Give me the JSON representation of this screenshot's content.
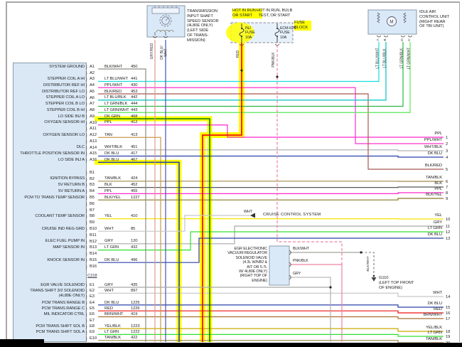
{
  "highlight_color": "#ffff00",
  "colors": {
    "BLK/WHT": "#8c8c84",
    "GRY/RED": "#e09a8c",
    "DK BLU/WHT": "#4054b0",
    "LT BLU/WHT": "#18dede",
    "PPL/WHT": "#ff30cc",
    "BLK/RED": "#a85850",
    "LT BLU/BLK": "#00c4c4",
    "LT GRN/BLK": "#28b848",
    "LT GRN/WHT": "#58e858",
    "DK GRN": "#087808",
    "PPL": "#ff28cc",
    "TAN": "#c89a50",
    "WHT/BLK": "#b4b4b4",
    "DK BLU": "#2840a8",
    "TAN/BLK": "#a08848",
    "BLK": "#585858",
    "BLK/YEL": "#887820",
    "YEL": "#f5e400",
    "WHT": "#c6c6c6",
    "GRY": "#a8a8a8",
    "LT GRN": "#30e030",
    "RED": "#f01010",
    "PNK/BLK": "#f080a0",
    "BRN/WHT": "#a87030",
    "YEL/BLK": "#c8a800"
  },
  "pcm_panel": {
    "connector_label": "C218",
    "groups": [
      {
        "name": "A",
        "rows": [
          {
            "pin": "A1",
            "label": "SYSTEM GROUND",
            "wire": "BLK/WHT",
            "circuit": "450"
          },
          {
            "pin": "A2"
          },
          {
            "pin": "A3",
            "label": "STEPPER COIL A HI",
            "wire": "LT BLU/WHT",
            "circuit": "441"
          },
          {
            "pin": "A4",
            "label": "DISTRIBUTOR REF HI",
            "wire": "PPL/WHT",
            "circuit": "430"
          },
          {
            "pin": "A5",
            "label": "DISTRIBUTOR REF LO",
            "wire": "BLK/RED",
            "circuit": "453"
          },
          {
            "pin": "A6",
            "label": "STEPPER COIL A LO",
            "wire": "LT BLU/BLK",
            "circuit": "442"
          },
          {
            "pin": "A7",
            "label": "STEPPER COIL B LO",
            "wire": "LT GRN/BLK",
            "circuit": "444"
          },
          {
            "pin": "A8",
            "label": "STEPPER COIL B HI",
            "wire": "LT GRN/WHT",
            "circuit": "443"
          },
          {
            "pin": "A9",
            "label": "LO SIDE INJ B",
            "wire": "DK GRN",
            "circuit": "468",
            "highlight": true
          },
          {
            "pin": "A10",
            "label": "OXYGEN SENSOR HI",
            "wire": "PPL",
            "circuit": "412"
          },
          {
            "pin": "A11"
          },
          {
            "pin": "A12",
            "label": "OXYGEN SENSOR LO",
            "wire": "TAN",
            "circuit": "413"
          },
          {
            "pin": "A13"
          },
          {
            "pin": "A14",
            "label": "DLC",
            "wire": "WHT/BLK",
            "circuit": "451"
          },
          {
            "pin": "A15",
            "label": "THROTTLE POSITION SENSOR IN",
            "wire": "DK BLU",
            "circuit": "417"
          },
          {
            "pin": "A16",
            "label": "LO SIDE INJ A",
            "wire": "DK BLU",
            "circuit": "467",
            "highlight": true
          }
        ]
      },
      {
        "name": "B",
        "rows": [
          {
            "pin": "B1"
          },
          {
            "pin": "B2",
            "label": "IGNITION BYPASS",
            "wire": "TAN/BLK",
            "circuit": "424"
          },
          {
            "pin": "B3",
            "label": "5V RETURN B",
            "wire": "BLK",
            "circuit": "452"
          },
          {
            "pin": "B4",
            "label": "5V RETURN A",
            "wire": "PPL",
            "circuit": "455"
          },
          {
            "pin": "B5",
            "label": "PCM TO TRANS TEMP SENSOR",
            "wire": "BLK/YEL",
            "circuit": "1227"
          },
          {
            "pin": "B6"
          },
          {
            "pin": "B7"
          },
          {
            "pin": "B8",
            "label": "COOLANT TEMP SENSOR",
            "wire": "YEL",
            "circuit": "410"
          },
          {
            "pin": "B9"
          },
          {
            "pin": "B10",
            "label": "CRUISE IND REG GRD",
            "wire": "WHT",
            "circuit": "85"
          },
          {
            "pin": "B11"
          },
          {
            "pin": "B12",
            "label": "ELEC FUEL PUMP IN",
            "wire": "GRY",
            "circuit": "120"
          },
          {
            "pin": "B13",
            "label": "MAP SENSOR IN",
            "wire": "LT GRN",
            "circuit": "432"
          },
          {
            "pin": "B14"
          },
          {
            "pin": "B15",
            "label": "KNOCK SENSOR IN",
            "wire": "DK BLU",
            "circuit": "496"
          },
          {
            "pin": "B16"
          }
        ]
      },
      {
        "name": "E",
        "rows": [
          {
            "pin": "E1",
            "label": "EGR VALVE SOLENOID",
            "wire": "GRY",
            "circuit": "435"
          },
          {
            "pin": "E2",
            "label": "TRANS SHIFT 3/2 SOLENOID\n(4L80E ONLY)",
            "wire": "WHT",
            "circuit": "897"
          },
          {
            "pin": "E3"
          },
          {
            "pin": "E4",
            "label": "PCM TRANS RANGE B",
            "wire": "DK BLU",
            "circuit": "1225"
          },
          {
            "pin": "E5",
            "label": "PCM TRANS RANGE C",
            "wire": "RED",
            "circuit": "1226"
          },
          {
            "pin": "E6",
            "label": "MIL INDICATOR CTRL",
            "wire": "BRN/WHT",
            "circuit": "419"
          },
          {
            "pin": "E7"
          },
          {
            "pin": "E8",
            "label": "PCM TRANS SHIFT SOL B",
            "wire": "YEL/BLK",
            "circuit": "1223"
          },
          {
            "pin": "E9",
            "label": "PCM TRANS SHIFT SOL A",
            "wire": "LT GRN",
            "circuit": "1222"
          },
          {
            "pin": "E10",
            "wire": "TAN/BLK",
            "circuit": "422"
          }
        ]
      }
    ]
  },
  "components": {
    "trans_sensor": {
      "label": "TRANSMISSION\nINPUT SHAFT\nSPEED SENSOR\n(4L80E ONLY)\n(LEFT SIDE\nOF TRANS-\nMISSION)",
      "wires": [
        "GRY/RED",
        "DK BLU/\nWHT"
      ]
    },
    "fuse_block": {
      "left_heading": "HOT IN RUN\nOR START",
      "right_heading": "HOT IN RUN, BULB\nTEST, OR START",
      "label": "FUSE\nBLOCK",
      "fuses": [
        {
          "name": "INJ\nFUSE\n10A",
          "wire": "RED",
          "highlighted": true
        },
        {
          "name": "ECM-IGN\nFUSE\n10A",
          "wire": "PNK/BLK",
          "highlighted": false
        }
      ]
    },
    "iac": {
      "label": "IDLE AIR\nCONTROL UNIT\n(RIGHT REAR\nOF TBI UNIT)",
      "motor_letter": "M",
      "pins": [
        "A",
        "B",
        "D",
        "C"
      ],
      "wires": [
        "LT BLU/WHT",
        "LT BLU/BLK",
        "LT GRN/BLK",
        "LT GRN/WHT"
      ]
    },
    "egr": {
      "label": "EGR ELECTRONIC\nVACUUM REGULATOR\nSOLENOID VALVE\n(4.3L W/NB2 &\nA/T OR 5.7L\nW/ 4L80E ONLY)\n(RIGHT TOP OF\nENGINE)",
      "pins": [
        "BLK/WHT",
        "PNK/BLK",
        "GRY"
      ]
    },
    "ground": {
      "name": "G110",
      "label": "G110\n(LEFT TOP FRONT\nOF ENGINE)",
      "wire": "BLK/WHT"
    },
    "cruise": {
      "wire": "WHT",
      "label": "CRUISE CONTROL SYSTEM"
    }
  },
  "right_exits": [
    {
      "n": "1",
      "label": "PPL"
    },
    {
      "n": "2",
      "label": "PPL/WHT"
    },
    {
      "n": "3",
      "label": "WHT/BLK"
    },
    {
      "n": "4",
      "label": "DK BLU"
    },
    {
      "n": "5",
      "label": "BLK/RED"
    },
    {
      "n": "6",
      "label": "TAN/BLK"
    },
    {
      "n": "7",
      "label": "BLK"
    },
    {
      "n": "8",
      "label": "PPL"
    },
    {
      "n": "9",
      "label": "BLK/YEL"
    },
    {
      "n": "10",
      "label": "YEL"
    },
    {
      "n": "11",
      "label": "GRY"
    },
    {
      "n": "12",
      "label": "LT GRN"
    },
    {
      "n": "13",
      "label": "DK BLU"
    },
    {
      "n": "14",
      "label": "WHT"
    },
    {
      "n": "15",
      "label": "DK BLU"
    },
    {
      "n": "16",
      "label": "RED"
    },
    {
      "n": "17",
      "label": "BRN/WHT"
    },
    {
      "n": "18",
      "label": "YEL/BLK"
    },
    {
      "n": "19",
      "label": "LT GRN"
    },
    {
      "n": "20",
      "label": "TAN/BLK"
    }
  ]
}
